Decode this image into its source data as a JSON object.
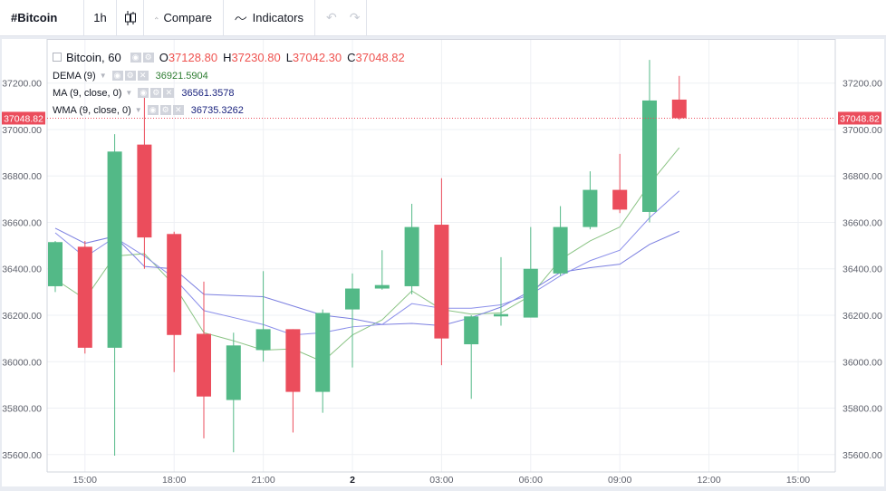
{
  "toolbar": {
    "symbol": "#Bitcoin",
    "interval": "1h",
    "candle_icon": "candles-icon",
    "compare_label": "Compare",
    "indicators_label": "Indicators",
    "undo_icon": "undo-icon",
    "redo_icon": "redo-icon"
  },
  "legend": {
    "title": "Bitcoin, 60",
    "o_label": "O",
    "o_value": "37128.80",
    "h_label": "H",
    "h_value": "37230.80",
    "l_label": "L",
    "l_value": "37042.30",
    "c_label": "C",
    "c_value": "37048.82",
    "indicators": [
      {
        "name": "DEMA (9)",
        "value": "36921.5904",
        "color": "#2e7d32"
      },
      {
        "name": "MA (9, close, 0)",
        "value": "36561.3578",
        "color": "#1a237e"
      },
      {
        "name": "WMA (9, close, 0)",
        "value": "36735.3262",
        "color": "#1a237e"
      }
    ]
  },
  "colors": {
    "up": "#53b987",
    "down": "#eb4d5c",
    "dema": "#8bc485",
    "ma": "#7b7fe0",
    "wma": "#8b8fea",
    "grid": "#eef0f4",
    "price_line": "#eb4d5c"
  },
  "chart_data": {
    "type": "candlestick",
    "y_ticks": [
      "35600.00",
      "35800.00",
      "36000.00",
      "36200.00",
      "36400.00",
      "36600.00",
      "36800.00",
      "37000.00",
      "37200.00"
    ],
    "ylim": [
      35525,
      37390
    ],
    "x_ticks": [
      {
        "label": "15:00",
        "i": 1,
        "bold": false
      },
      {
        "label": "18:00",
        "i": 4,
        "bold": false
      },
      {
        "label": "21:00",
        "i": 7,
        "bold": false
      },
      {
        "label": "2",
        "i": 10,
        "bold": true
      },
      {
        "label": "03:00",
        "i": 13,
        "bold": false
      },
      {
        "label": "06:00",
        "i": 16,
        "bold": false
      },
      {
        "label": "09:00",
        "i": 19,
        "bold": false
      },
      {
        "label": "12:00",
        "i": 22,
        "bold": false
      },
      {
        "label": "15:00",
        "i": 25,
        "bold": false
      }
    ],
    "current_price_label": "37048.82",
    "current_price": 37048.82,
    "candles": [
      {
        "o": 36325,
        "h": 36520,
        "l": 36300,
        "c": 36515
      },
      {
        "o": 36495,
        "h": 36520,
        "l": 36035,
        "c": 36060
      },
      {
        "o": 36060,
        "h": 36980,
        "l": 35595,
        "c": 36905
      },
      {
        "o": 36935,
        "h": 37150,
        "l": 36400,
        "c": 36535
      },
      {
        "o": 36550,
        "h": 36560,
        "l": 35955,
        "c": 36115
      },
      {
        "o": 36120,
        "h": 36345,
        "l": 35670,
        "c": 35850
      },
      {
        "o": 35835,
        "h": 36125,
        "l": 35610,
        "c": 36070
      },
      {
        "o": 36050,
        "h": 36390,
        "l": 36000,
        "c": 36140
      },
      {
        "o": 36140,
        "h": 36140,
        "l": 35695,
        "c": 35870
      },
      {
        "o": 35870,
        "h": 36225,
        "l": 35780,
        "c": 36210
      },
      {
        "o": 36225,
        "h": 36380,
        "l": 35975,
        "c": 36315
      },
      {
        "o": 36315,
        "h": 36480,
        "l": 36310,
        "c": 36330
      },
      {
        "o": 36325,
        "h": 36680,
        "l": 36290,
        "c": 36580
      },
      {
        "o": 36590,
        "h": 36790,
        "l": 35985,
        "c": 36100
      },
      {
        "o": 36075,
        "h": 36200,
        "l": 35840,
        "c": 36195
      },
      {
        "o": 36195,
        "h": 36450,
        "l": 36155,
        "c": 36205
      },
      {
        "o": 36190,
        "h": 36580,
        "l": 36190,
        "c": 36400
      },
      {
        "o": 36380,
        "h": 36670,
        "l": 36370,
        "c": 36580
      },
      {
        "o": 36580,
        "h": 36820,
        "l": 36570,
        "c": 36740
      },
      {
        "o": 36740,
        "h": 36895,
        "l": 36640,
        "c": 36655
      },
      {
        "o": 36645,
        "h": 37300,
        "l": 36600,
        "c": 37125
      },
      {
        "o": 37128.8,
        "h": 37230.8,
        "l": 37042.3,
        "c": 37048.82
      }
    ],
    "series": [
      {
        "name": "DEMA (9)",
        "values": [
          36355,
          36270,
          36455,
          36465,
          36330,
          36125,
          36090,
          36050,
          36055,
          36000,
          36115,
          36180,
          36305,
          36225,
          36205,
          36210,
          36285,
          36440,
          36520,
          36580,
          36765,
          36921.59
        ]
      },
      {
        "name": "MA (9, close, 0)",
        "values": [
          36575,
          36510,
          36540,
          36410,
          36400,
          36290,
          36285,
          36280,
          36240,
          36200,
          36185,
          36160,
          36165,
          36155,
          36190,
          36235,
          36305,
          36385,
          36405,
          36420,
          36505,
          36561.36
        ]
      },
      {
        "name": "WMA (9, close, 0)",
        "values": [
          36555,
          36450,
          36535,
          36455,
          36360,
          36220,
          36190,
          36160,
          36115,
          36125,
          36150,
          36160,
          36250,
          36230,
          36230,
          36245,
          36290,
          36370,
          36435,
          36480,
          36620,
          36735.33
        ]
      }
    ]
  }
}
